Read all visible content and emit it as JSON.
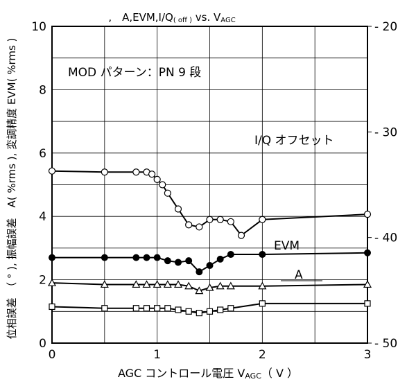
{
  "chart_data": {
    "type": "line",
    "title": ",　A,EVM,I/Q",
    "title_sub": "( off )",
    "title_tail": " vs. V",
    "title_tail_sub": "AGC",
    "xlabel": "AGC コントロール電圧 V",
    "xlabel_sub": "AGC",
    "xlabel_tail": "（ V ）",
    "ylabel_left": "位相誤差　（ ° ), 振幅誤差　A( %rms ), 変調精度 EVM( %rms )",
    "annotation": "MOD パターン：PN 9 段",
    "x_ticks": [
      "0",
      "1",
      "2",
      "3"
    ],
    "y_left_ticks": [
      "0",
      "2",
      "4",
      "6",
      "8",
      "10"
    ],
    "y_right_ticks": [
      "- 20",
      "- 30",
      "- 40",
      "- 50"
    ],
    "xlim": [
      0,
      3
    ],
    "ylim_left": [
      0,
      10
    ],
    "ylim_right": [
      20,
      50
    ],
    "grid": true,
    "series": [
      {
        "name": "I/Q オフセット",
        "axis": "right",
        "marker": "open-circle",
        "x": [
          0,
          0.5,
          0.8,
          0.9,
          0.95,
          1.0,
          1.05,
          1.1,
          1.2,
          1.3,
          1.4,
          1.5,
          1.6,
          1.7,
          1.8,
          2.0,
          3.0
        ],
        "y": [
          33.7,
          33.8,
          33.8,
          33.8,
          34.0,
          34.5,
          35.0,
          35.8,
          37.3,
          38.8,
          39.0,
          38.3,
          38.3,
          38.5,
          39.8,
          38.3,
          37.8
        ]
      },
      {
        "name": "EVM",
        "axis": "left",
        "marker": "filled-circle",
        "x": [
          0,
          0.5,
          0.8,
          0.9,
          1.0,
          1.1,
          1.2,
          1.3,
          1.4,
          1.5,
          1.6,
          1.7,
          2.0,
          3.0
        ],
        "y": [
          2.7,
          2.7,
          2.7,
          2.7,
          2.7,
          2.6,
          2.55,
          2.6,
          2.25,
          2.45,
          2.65,
          2.8,
          2.8,
          2.85
        ]
      },
      {
        "name": "A",
        "axis": "left",
        "marker": "open-triangle",
        "x": [
          0,
          0.5,
          0.8,
          0.9,
          1.0,
          1.1,
          1.2,
          1.3,
          1.4,
          1.5,
          1.6,
          1.7,
          2.0,
          3.0
        ],
        "y": [
          1.9,
          1.85,
          1.85,
          1.85,
          1.85,
          1.85,
          1.85,
          1.8,
          1.65,
          1.75,
          1.8,
          1.8,
          1.8,
          1.85
        ]
      },
      {
        "name": "",
        "axis": "left",
        "marker": "open-square",
        "x": [
          0,
          0.5,
          0.8,
          0.9,
          1.0,
          1.1,
          1.2,
          1.3,
          1.4,
          1.5,
          1.6,
          1.7,
          2.0,
          3.0
        ],
        "y": [
          1.15,
          1.1,
          1.1,
          1.1,
          1.1,
          1.1,
          1.05,
          1.0,
          0.95,
          1.0,
          1.05,
          1.1,
          1.25,
          1.25
        ]
      }
    ]
  }
}
